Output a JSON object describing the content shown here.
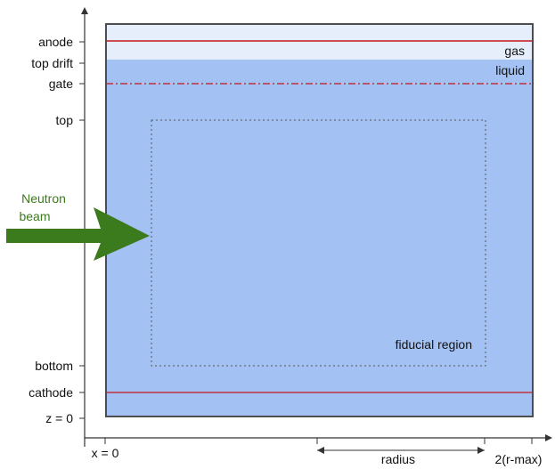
{
  "colors": {
    "gas": "#e7eefb",
    "liquid": "#a4c1f3",
    "border": "#4d4d4d",
    "electrode": "#c4161c",
    "beam": "#3c7a1e",
    "beam_text": "#3c7a1e",
    "axis": "#333333"
  },
  "z_axis_labels": {
    "anode": "anode",
    "top_drift": "top drift",
    "gate": "gate",
    "top": "top",
    "bottom": "bottom",
    "cathode": "cathode",
    "z0": "z = 0"
  },
  "region_labels": {
    "gas": "gas",
    "liquid": "liquid",
    "fiducial": "fiducial region"
  },
  "beam": {
    "line1": "Neutron",
    "line2": "beam"
  },
  "x_axis_labels": {
    "x0": "x = 0",
    "radius": "radius",
    "rmax": "2(r-max)"
  }
}
